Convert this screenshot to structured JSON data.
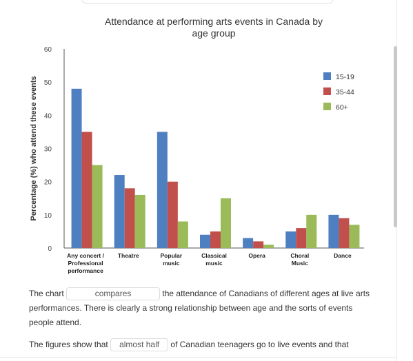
{
  "chart_data": {
    "type": "bar",
    "title_lines": [
      "Attendance at performing arts events in Canada by",
      "age group"
    ],
    "ylabel": "Percentage (%) who attend these events",
    "xlabel": "",
    "ylim": [
      0,
      60
    ],
    "yticks": [
      0,
      10,
      20,
      30,
      40,
      50,
      60
    ],
    "categories": [
      [
        "Any concert /",
        "Professional",
        "performance"
      ],
      [
        "Theatre"
      ],
      [
        "Popular",
        "music"
      ],
      [
        "Classical",
        "music"
      ],
      [
        "Opera"
      ],
      [
        "Choral",
        "Music"
      ],
      [
        "Dance"
      ]
    ],
    "series": [
      {
        "name": "15-19",
        "color": "#4e80c1",
        "values": [
          48,
          22,
          35,
          4,
          3,
          5,
          10
        ]
      },
      {
        "name": "35-44",
        "color": "#c1504d",
        "values": [
          35,
          18,
          20,
          5,
          2,
          6,
          9
        ]
      },
      {
        "name": "60+",
        "color": "#9bbb59",
        "values": [
          25,
          16,
          8,
          15,
          1,
          10,
          7
        ]
      }
    ],
    "grid": false,
    "legend_position": "top-right"
  },
  "text": {
    "p1_before": "The chart",
    "blank1": "compares",
    "p1_after": "the attendance of Canadians of different ages at live arts performances. There is clearly a strong relationship between age and the sorts of events people attend.",
    "p2_before": "The figures show that",
    "blank2": "almost half",
    "p2_after": "of Canadian teenagers go to live events and that"
  }
}
